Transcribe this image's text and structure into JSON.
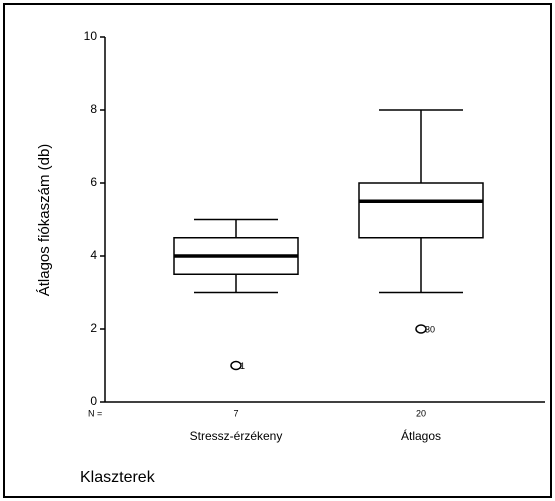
{
  "chart_data": {
    "type": "boxplot",
    "y_label": "Átlagos fiókaszám (db)",
    "x_label": "Klaszterek",
    "n_label": "N =",
    "categories": [
      "Stressz-érzékeny",
      "Átlagos"
    ],
    "n": [
      7,
      20
    ],
    "boxes": [
      {
        "whisker_low": 3,
        "q1": 3.5,
        "median": 4,
        "q3": 4.5,
        "whisker_high": 5,
        "outliers": [
          1
        ],
        "outlier_ids": [
          "1"
        ]
      },
      {
        "whisker_low": 3,
        "q1": 4.5,
        "median": 5.5,
        "q3": 6,
        "whisker_high": 8,
        "outliers": [
          2
        ],
        "outlier_ids": [
          "30"
        ]
      }
    ],
    "color": "#000000",
    "ylim": [
      0,
      10
    ],
    "yticks": [
      0,
      2,
      4,
      6,
      8,
      10
    ]
  }
}
